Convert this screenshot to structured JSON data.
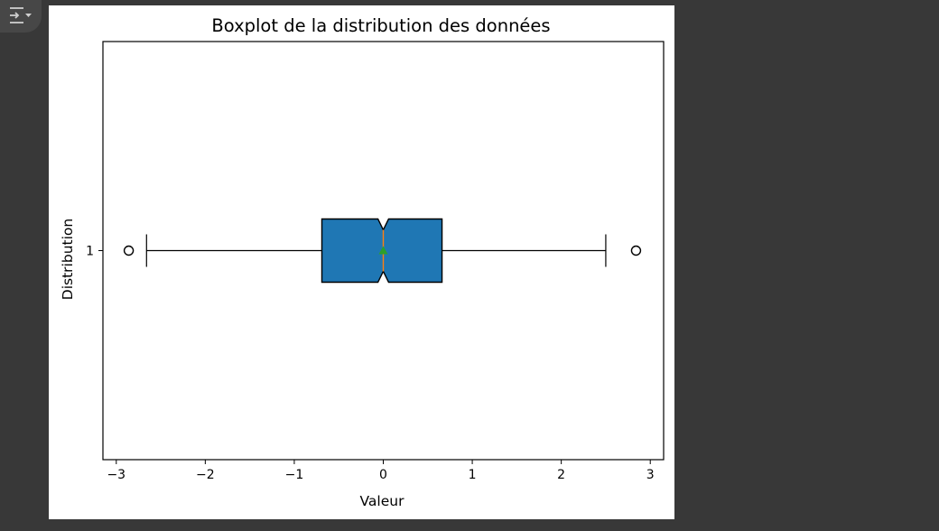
{
  "toolbar": {
    "toggle_icon": "output-toggle-icon"
  },
  "colors": {
    "box_fill": "#1f77b4",
    "mean_marker": "#2ca02c",
    "median_line": "#ff7f0e"
  },
  "chart_data": {
    "type": "boxplot",
    "orientation": "horizontal",
    "notched": true,
    "show_mean": true,
    "title": "Boxplot de la distribution des données",
    "xlabel": "Valeur",
    "ylabel": "Distribution",
    "xlim": [
      -3.15,
      3.15
    ],
    "xticks": [
      -3,
      -2,
      -1,
      0,
      1,
      2,
      3
    ],
    "xtick_labels": [
      "−3",
      "−2",
      "−1",
      "0",
      "1",
      "2",
      "3"
    ],
    "categories": [
      "1"
    ],
    "boxes": [
      {
        "label": "1",
        "whisker_low": -2.66,
        "q1": -0.69,
        "median": 0.0,
        "q3": 0.66,
        "whisker_high": 2.5,
        "mean": 0.0,
        "notch_low": -0.06,
        "notch_high": 0.06,
        "outliers": [
          -2.86,
          2.84
        ]
      }
    ],
    "grid": false
  }
}
